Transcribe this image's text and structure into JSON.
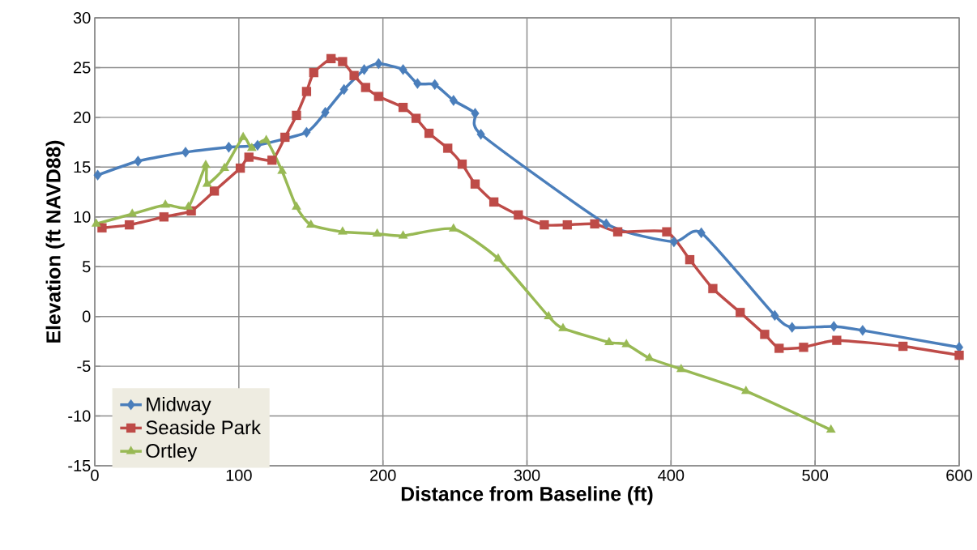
{
  "chart_data": {
    "type": "line",
    "xlabel": "Distance from Baseline (ft)",
    "ylabel": "Elevation (ft NAVD88)",
    "xlim": [
      0,
      600
    ],
    "xticks": [
      0,
      100,
      200,
      300,
      400,
      500,
      600
    ],
    "ylim": [
      -15,
      30
    ],
    "yticks": [
      -15,
      -10,
      -5,
      0,
      5,
      10,
      15,
      20,
      25,
      30
    ],
    "grid": true,
    "legend": "bottom left",
    "line_style": "solid",
    "series": [
      {
        "name": "Midway",
        "color": "#4a7ebb",
        "marker": "diamond",
        "x": [
          2,
          30,
          63,
          93,
          113,
          147,
          160,
          173,
          187,
          197,
          214,
          224,
          236,
          249,
          264,
          268,
          355,
          402,
          421,
          472,
          484,
          513,
          533,
          600
        ],
        "values": [
          14.2,
          15.6,
          16.5,
          17.0,
          17.2,
          18.5,
          20.5,
          22.8,
          24.8,
          25.4,
          24.8,
          23.4,
          23.3,
          21.7,
          20.4,
          18.3,
          9.3,
          7.5,
          8.4,
          0.1,
          -1.1,
          -1.0,
          -1.4,
          -3.1
        ]
      },
      {
        "name": "Seaside Park",
        "color": "#be4b48",
        "marker": "square",
        "x": [
          5,
          24,
          48,
          67,
          83,
          101,
          107,
          123,
          132,
          140,
          147,
          152,
          164,
          172,
          180,
          188,
          197,
          214,
          223,
          232,
          245,
          255,
          264,
          277,
          294,
          312,
          328,
          347,
          363,
          397,
          413,
          429,
          448,
          465,
          475,
          492,
          515,
          561,
          600
        ],
        "values": [
          8.9,
          9.2,
          10.0,
          10.6,
          12.6,
          14.9,
          16.0,
          15.7,
          18.0,
          20.2,
          22.6,
          24.5,
          25.9,
          25.6,
          24.2,
          23.0,
          22.1,
          21.0,
          19.9,
          18.4,
          16.9,
          15.3,
          13.3,
          11.5,
          10.2,
          9.2,
          9.2,
          9.3,
          8.5,
          8.5,
          5.7,
          2.8,
          0.4,
          -1.8,
          -3.2,
          -3.1,
          -2.4,
          -3.0,
          -3.9
        ]
      },
      {
        "name": "Ortley",
        "color": "#98b954",
        "marker": "triangle",
        "x": [
          1,
          26,
          49,
          65,
          77,
          78,
          90,
          103,
          109,
          119,
          130,
          140,
          150,
          172,
          196,
          214,
          249,
          280,
          315,
          325,
          357,
          369,
          385,
          407,
          452,
          511
        ],
        "values": [
          9.3,
          10.3,
          11.2,
          11.0,
          15.2,
          13.3,
          14.9,
          18.0,
          16.9,
          17.7,
          14.6,
          11.0,
          9.2,
          8.5,
          8.3,
          8.1,
          8.8,
          5.8,
          0.0,
          -1.2,
          -2.6,
          -2.8,
          -4.2,
          -5.3,
          -7.5,
          -11.4
        ]
      }
    ]
  }
}
